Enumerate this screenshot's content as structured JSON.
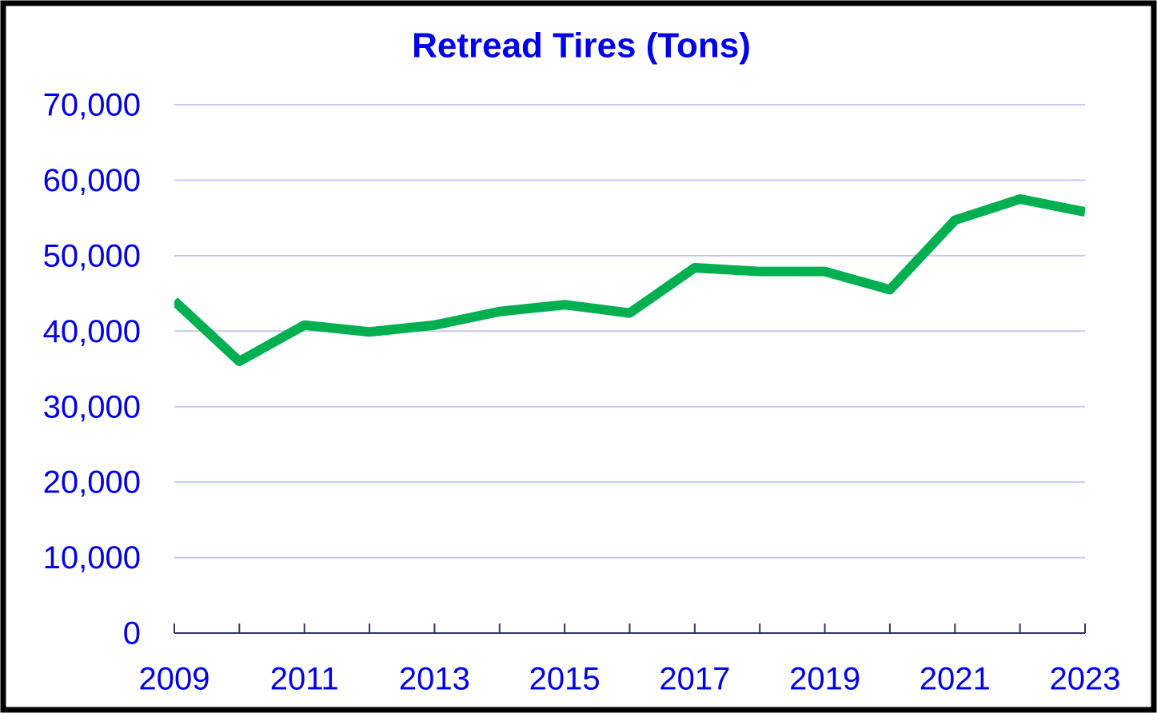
{
  "chart_data": {
    "type": "line",
    "title": "Retread Tires (Tons)",
    "x": [
      2009,
      2010,
      2011,
      2012,
      2013,
      2014,
      2015,
      2016,
      2017,
      2018,
      2019,
      2020,
      2021,
      2022,
      2023
    ],
    "series": [
      {
        "name": "Retread Tires",
        "color": "#00b050",
        "values": [
          44000,
          36000,
          40800,
          39900,
          40800,
          42600,
          43500,
          42400,
          48400,
          47900,
          47900,
          45500,
          54700,
          57500,
          55800
        ]
      }
    ],
    "xlim": [
      2009,
      2023
    ],
    "xticks": [
      2009,
      2011,
      2013,
      2015,
      2017,
      2019,
      2021,
      2023
    ],
    "ylim": [
      0,
      70000
    ],
    "yticks": [
      0,
      {
        "value": 10000,
        "label": "10,000"
      },
      {
        "value": 20000,
        "label": "20,000"
      },
      {
        "value": 30000,
        "label": "30,000"
      },
      {
        "value": 40000,
        "label": "40,000"
      },
      {
        "value": 50000,
        "label": "50,000"
      },
      {
        "value": 60000,
        "label": "60,000"
      },
      {
        "value": 70000,
        "label": "70,000"
      }
    ],
    "grid": true
  }
}
